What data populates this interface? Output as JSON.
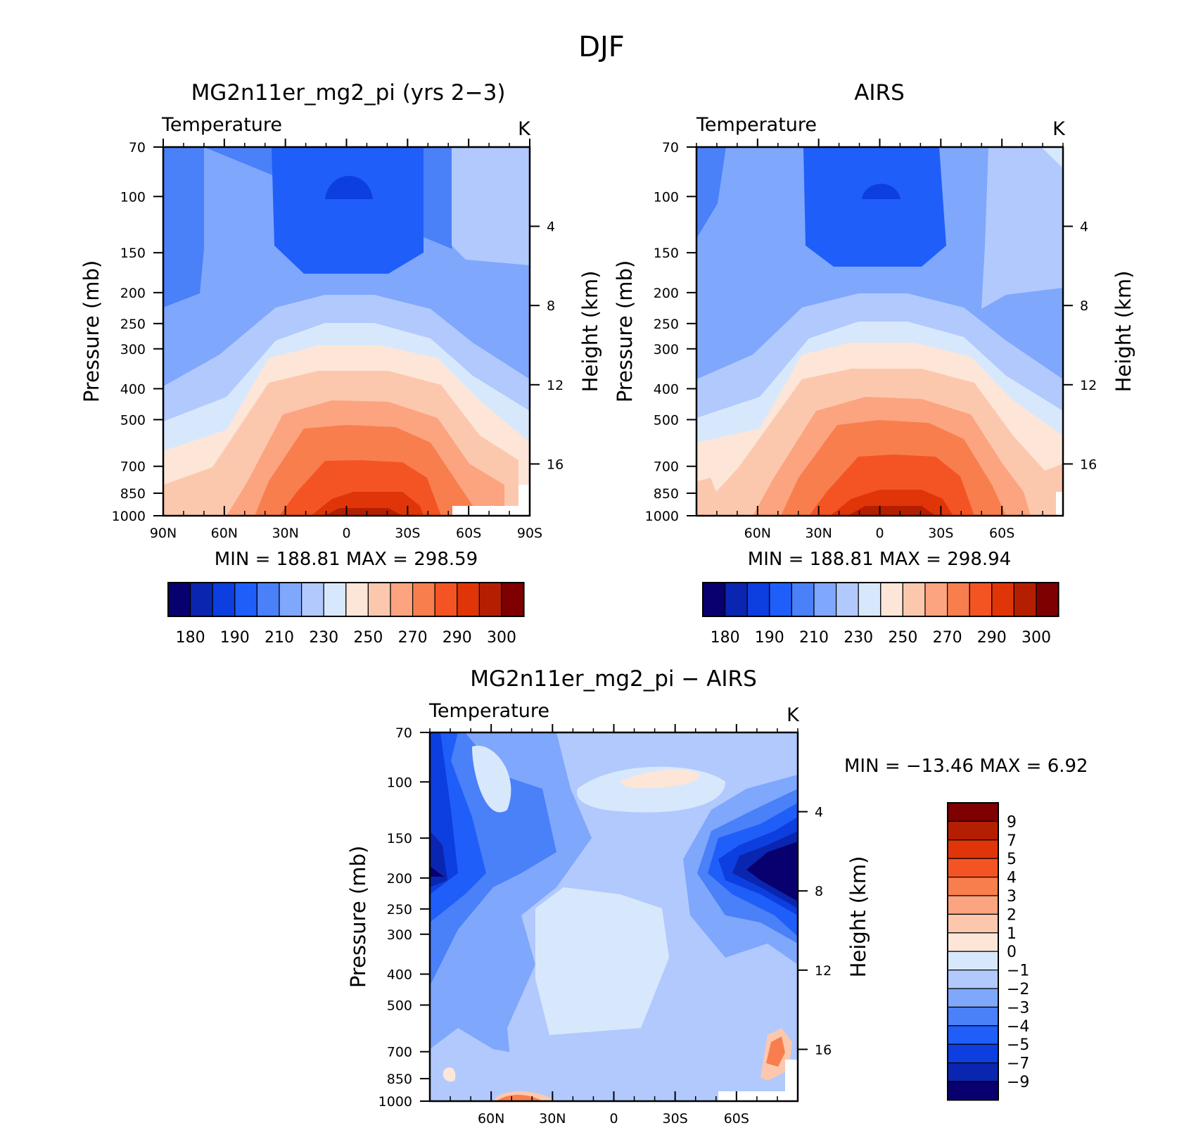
{
  "figure": {
    "title": "DJF"
  },
  "panels": {
    "model": {
      "title": "MG2n11er_mg2_pi (yrs 2−3)",
      "left_label": "Temperature",
      "unit": "K",
      "stats": "MIN =  188.81   MAX =  298.59"
    },
    "obs": {
      "title": "AIRS",
      "left_label": "Temperature",
      "unit": "K",
      "stats": "MIN =  188.81   MAX =  298.94"
    },
    "diff": {
      "title": "MG2n11er_mg2_pi − AIRS",
      "left_label": "Temperature",
      "unit": "K",
      "stats": "MIN = −13.46   MAX =    6.92"
    }
  },
  "axes": {
    "ylabel": "Pressure (mb)",
    "y2label": "Height (km)"
  },
  "chart_data": [
    {
      "type": "heatmap",
      "panel": "model",
      "title": "MG2n11er_mg2_pi (yrs 2−3)",
      "ylabel": "Pressure (mb)",
      "y2label": "Height (km)",
      "x_ticks": [
        "90N",
        "60N",
        "30N",
        "0",
        "30S",
        "60S",
        "90S"
      ],
      "x_values": [
        -90,
        -60,
        -30,
        0,
        30,
        60,
        90
      ],
      "xlim": [
        -90,
        90
      ],
      "y_ticks": [
        70,
        100,
        150,
        200,
        250,
        300,
        400,
        500,
        700,
        850,
        1000
      ],
      "ylim": [
        1000,
        70
      ],
      "y_scale": "log",
      "y2_ticks": [
        4,
        8,
        12,
        16
      ],
      "levels": [
        180,
        185,
        190,
        200,
        210,
        220,
        230,
        240,
        250,
        260,
        270,
        280,
        290,
        300
      ],
      "colorbar_labels": [
        "180",
        "190",
        "210",
        "230",
        "250",
        "270",
        "290",
        "300"
      ],
      "min": 188.81,
      "max": 298.59
    },
    {
      "type": "heatmap",
      "panel": "obs",
      "title": "AIRS",
      "ylabel": "Pressure (mb)",
      "y2label": "Height (km)",
      "x_ticks": [
        "60N",
        "30N",
        "0",
        "30S",
        "60S"
      ],
      "x_values": [
        -60,
        -30,
        0,
        30,
        60
      ],
      "xlim": [
        -90,
        90
      ],
      "y_ticks": [
        70,
        100,
        150,
        200,
        250,
        300,
        400,
        500,
        700,
        850,
        1000
      ],
      "ylim": [
        1000,
        70
      ],
      "y_scale": "log",
      "y2_ticks": [
        4,
        8,
        12,
        16
      ],
      "levels": [
        180,
        185,
        190,
        200,
        210,
        220,
        230,
        240,
        250,
        260,
        270,
        280,
        290,
        300
      ],
      "colorbar_labels": [
        "180",
        "190",
        "210",
        "230",
        "250",
        "270",
        "290",
        "300"
      ],
      "min": 188.81,
      "max": 298.94
    },
    {
      "type": "heatmap",
      "panel": "diff",
      "title": "MG2n11er_mg2_pi − AIRS",
      "ylabel": "Pressure (mb)",
      "y2label": "Height (km)",
      "x_ticks": [
        "60N",
        "30N",
        "0",
        "30S",
        "60S"
      ],
      "x_values": [
        -60,
        -30,
        0,
        30,
        60
      ],
      "xlim": [
        -90,
        90
      ],
      "y_ticks": [
        70,
        100,
        150,
        200,
        250,
        300,
        400,
        500,
        700,
        850,
        1000
      ],
      "ylim": [
        1000,
        70
      ],
      "y_scale": "log",
      "y2_ticks": [
        4,
        8,
        12,
        16
      ],
      "levels": [
        -9,
        -7,
        -5,
        -4,
        -3,
        -2,
        -1,
        0,
        1,
        2,
        3,
        4,
        5,
        7,
        9
      ],
      "colorbar_labels": [
        "9",
        "7",
        "5",
        "4",
        "3",
        "2",
        "1",
        "0",
        "−1",
        "−2",
        "−3",
        "−4",
        "−5",
        "−7",
        "−9"
      ],
      "min": -13.46,
      "max": 6.92
    }
  ],
  "palettes": {
    "temperature": [
      "#08006e",
      "#0a26b0",
      "#0d3ee0",
      "#1f5ef8",
      "#4a80f8",
      "#7fa7fc",
      "#b1c9fd",
      "#d8e8fc",
      "#fde6d7",
      "#fcc8ad",
      "#fba47f",
      "#f87e4e",
      "#f45424",
      "#df3508",
      "#b51f01",
      "#7e0000"
    ],
    "difference": [
      "#7e0000",
      "#b51f01",
      "#df3508",
      "#f45424",
      "#f87e4e",
      "#fba47f",
      "#fcc8ad",
      "#fde6d7",
      "#d8e8fc",
      "#b1c9fd",
      "#7fa7fc",
      "#4a80f8",
      "#1f5ef8",
      "#0d3ee0",
      "#0a26b0",
      "#08006e"
    ]
  }
}
